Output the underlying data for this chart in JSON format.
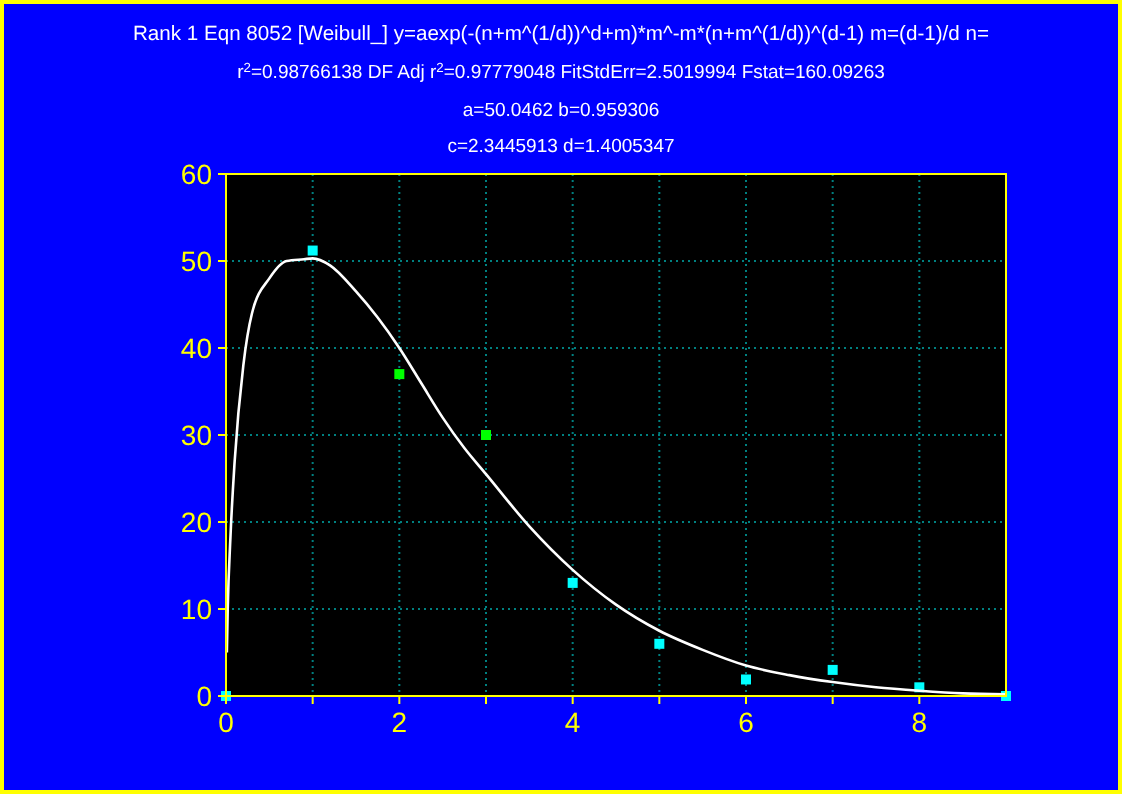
{
  "chart_data": {
    "type": "scatter",
    "title": "Rank 1  Eqn 8052  [Weibull_] y=aexp(-(n+m^(1/d))^d+m)*m^-m*(n+m^(1/d))^(d-1) m=(d-1)/d n=",
    "subtitle": "r$^{2}$=0.98766138  DF Adj r$^{2}$=0.97779048  FitStdErr=2.5019994  Fstat=160.09263",
    "annotations": [
      "a=50.0462 b=0.959306",
      "c=2.3445913 d=1.4005347"
    ],
    "x": [
      0,
      1,
      2,
      3,
      4,
      5,
      6,
      7,
      8,
      9
    ],
    "series": [
      {
        "values": [
          0,
          51.2,
          37,
          30,
          13,
          6,
          1.9,
          3,
          1,
          0
        ],
        "colors": [
          "#00ffff",
          "#00ffff",
          "#00ff00",
          "#00ff00",
          "#00ffff",
          "#00ffff",
          "#00ffff",
          "#00ffff",
          "#00ffff",
          "#00ffff"
        ],
        "marker": "square"
      },
      {
        "type": "line",
        "color": "#ffffff",
        "x": [
          0.01,
          0.02,
          0.05,
          0.1,
          0.2,
          0.3,
          0.5,
          0.7,
          0.9,
          1,
          1.2,
          1.5,
          1.75,
          2,
          2.25,
          2.5,
          2.75,
          3,
          3.5,
          4,
          4.5,
          5,
          5.5,
          6,
          6.5,
          7,
          7.5,
          8,
          8.5,
          9
        ],
        "values": [
          5,
          10,
          18,
          27,
          38,
          44,
          48,
          50,
          50.2,
          50.3,
          49.5,
          46.5,
          43.5,
          40,
          36,
          32,
          28.5,
          25.5,
          19.5,
          14.5,
          10.5,
          7.5,
          5.3,
          3.5,
          2.4,
          1.6,
          1,
          0.6,
          0.3,
          0.2
        ]
      }
    ],
    "xlim": [
      0,
      9
    ],
    "ylim": [
      0,
      60
    ],
    "xticks": [
      0,
      {
        "value": 1,
        "label": null
      },
      2,
      {
        "value": 3,
        "label": null
      },
      4,
      {
        "value": 5,
        "label": null
      },
      6,
      {
        "value": 7,
        "label": null
      },
      8
    ],
    "yticks": [
      0,
      10,
      20,
      30,
      40,
      50,
      60
    ],
    "grid": true
  }
}
